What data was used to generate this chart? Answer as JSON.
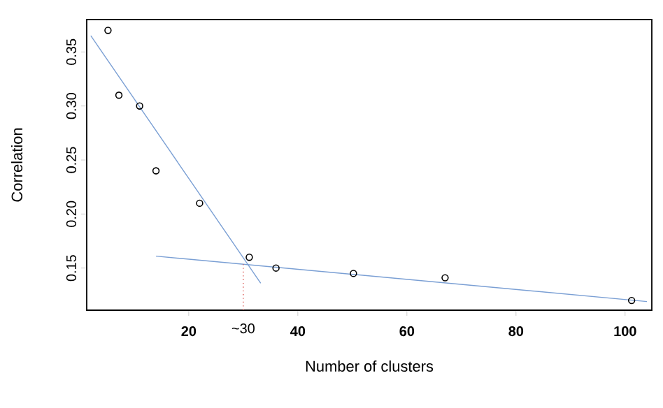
{
  "chart_data": {
    "type": "scatter",
    "xlabel": "Number of clusters",
    "ylabel": "Correlation",
    "grid": false,
    "xlim": [
      1.3,
      104.9
    ],
    "ylim": [
      0.111,
      0.38
    ],
    "xticks": [
      20,
      40,
      60,
      80,
      100
    ],
    "yticks": [
      0.15,
      {
        "value": 0.2,
        "label": "0.20"
      },
      0.25,
      {
        "value": 0.3,
        "label": "0.30"
      },
      0.35
    ],
    "series": [
      {
        "marker": "circle",
        "color": "#000000",
        "x": [
          5.2,
          7.2,
          11,
          14,
          22,
          31.1,
          36,
          50.2,
          67,
          101.2
        ],
        "values": [
          0.37,
          0.31,
          0.3,
          0.24,
          0.21,
          0.16,
          0.15,
          0.145,
          0.141,
          0.12
        ]
      },
      {
        "type": "line",
        "marker": "none",
        "color": "#7a9fd4",
        "x": [
          2.05,
          33.2
        ],
        "values": [
          0.365,
          0.136
        ]
      },
      {
        "type": "line",
        "marker": "none",
        "color": "#7a9fd4",
        "x": [
          14,
          104
        ],
        "values": [
          0.161,
          0.119
        ]
      }
    ],
    "ref_lines": [
      {
        "axis": "x",
        "value": 30,
        "label": "~30",
        "color": "#d9534f",
        "line_style": "dotted"
      }
    ]
  }
}
